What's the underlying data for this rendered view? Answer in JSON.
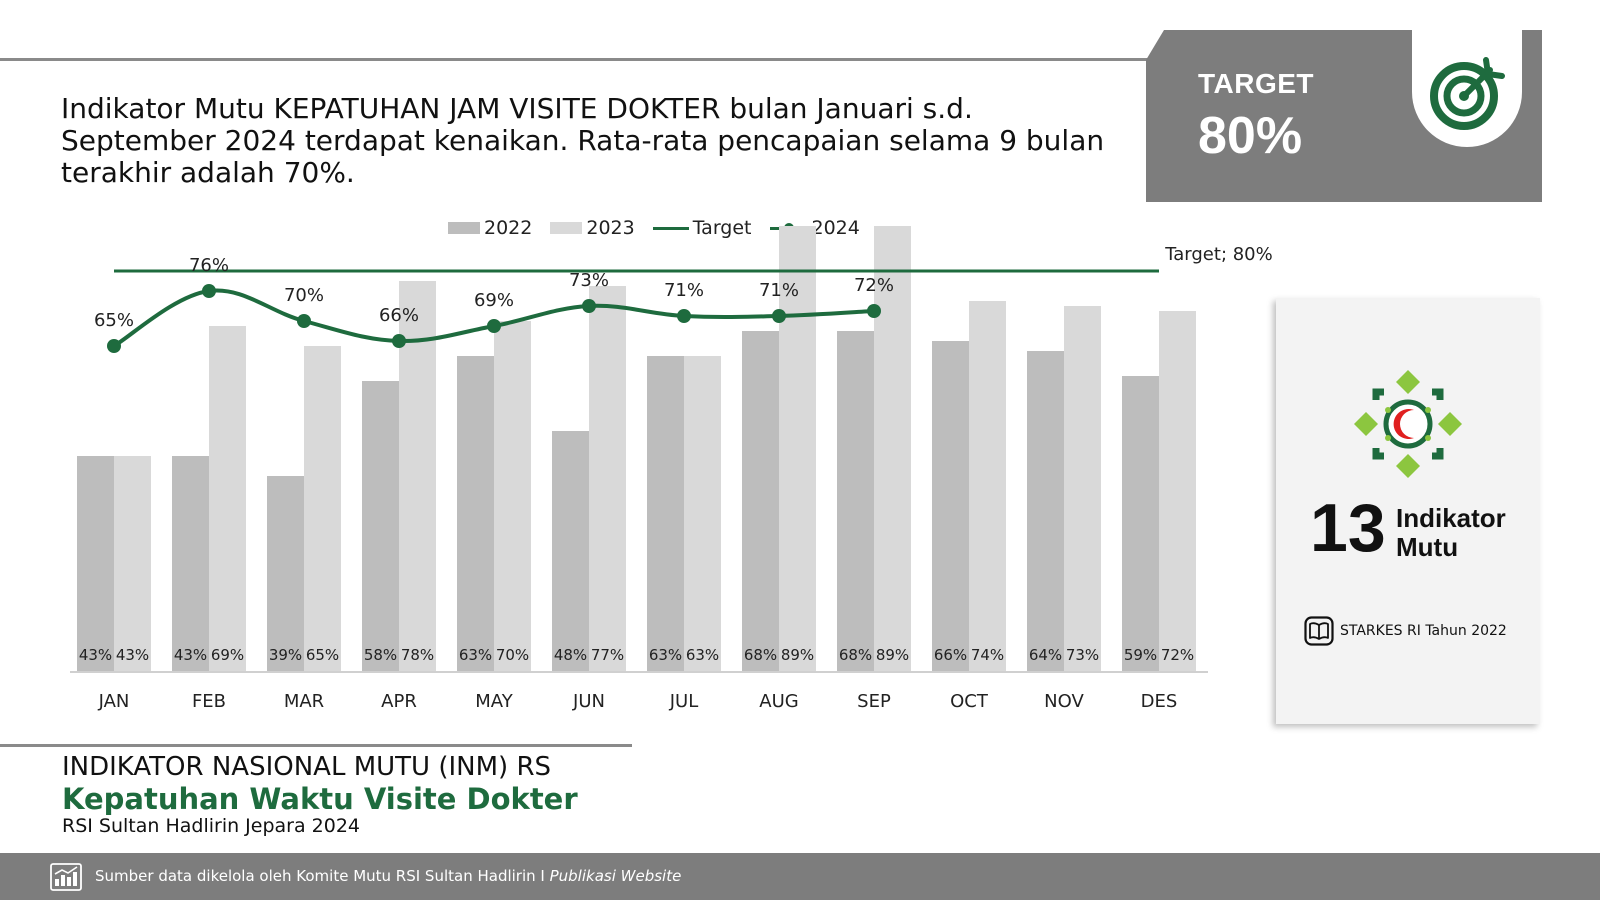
{
  "headline": "Indikator Mutu KEPATUHAN JAM VISITE DOKTER bulan Januari s.d. September 2024 terdapat kenaikan. Rata-rata pencapaian selama 9 bulan terakhir adalah 70%.",
  "target_box": {
    "label": "TARGET",
    "value": "80%",
    "icon": "target-icon"
  },
  "right_card": {
    "number": "13",
    "label": "Indikator Mutu",
    "source": "STARKES RI Tahun 2022",
    "emblem_icon": "hospital-emblem-icon",
    "source_icon": "book-icon"
  },
  "footer": {
    "title1": "INDIKATOR NASIONAL MUTU (INM) RS",
    "title2": "Kepatuhan Waktu Visite Dokter",
    "title3": "RSI Sultan Hadlirin Jepara 2024"
  },
  "source_bar": {
    "text": "Sumber data dikelola oleh Komite Mutu RSI Sultan Hadlirin I ",
    "text_italic": "Publikasi Website",
    "icon": "chart-report-icon"
  },
  "colors": {
    "green": "#1e6b3e",
    "bar_2022": "#bdbdbd",
    "bar_2023": "#d9d9d9",
    "grey_panel": "#7d7d7d"
  },
  "chart_data": {
    "type": "bar",
    "categories": [
      "JAN",
      "FEB",
      "MAR",
      "APR",
      "MAY",
      "JUN",
      "JUL",
      "AUG",
      "SEP",
      "OCT",
      "NOV",
      "DES"
    ],
    "series": [
      {
        "name": "2022",
        "type": "bar",
        "values": [
          43,
          43,
          39,
          58,
          63,
          48,
          63,
          68,
          68,
          66,
          64,
          59
        ]
      },
      {
        "name": "2023",
        "type": "bar",
        "values": [
          43,
          69,
          65,
          78,
          70,
          77,
          63,
          89,
          89,
          74,
          73,
          72
        ]
      },
      {
        "name": "Target",
        "type": "line",
        "values": [
          80,
          80,
          80,
          80,
          80,
          80,
          80,
          80,
          80,
          80,
          80,
          80
        ]
      },
      {
        "name": "2024",
        "type": "line",
        "values": [
          65,
          76,
          70,
          66,
          69,
          73,
          71,
          71,
          72,
          null,
          null,
          null
        ]
      }
    ],
    "bar_labels": [
      [
        "43%",
        "43%"
      ],
      [
        "43%",
        "69%"
      ],
      [
        "39%",
        "65%"
      ],
      [
        "58%",
        "78%"
      ],
      [
        "63%",
        "70%"
      ],
      [
        "48%",
        "77%"
      ],
      [
        "63%",
        "63%"
      ],
      [
        "68%",
        "89%"
      ],
      [
        "68%",
        "89%"
      ],
      [
        "66%",
        "74%"
      ],
      [
        "64%",
        "73%"
      ],
      [
        "59%",
        "72%"
      ]
    ],
    "line_labels": [
      "65%",
      "76%",
      "70%",
      "66%",
      "69%",
      "73%",
      "71%",
      "71%",
      "72%"
    ],
    "target_label": "Target; 80%",
    "legend": [
      "2022",
      "2023",
      "Target",
      "2024"
    ],
    "legend_position": "top",
    "ylim": [
      0,
      100
    ],
    "grid": false,
    "title": "",
    "xlabel": "",
    "ylabel": ""
  }
}
